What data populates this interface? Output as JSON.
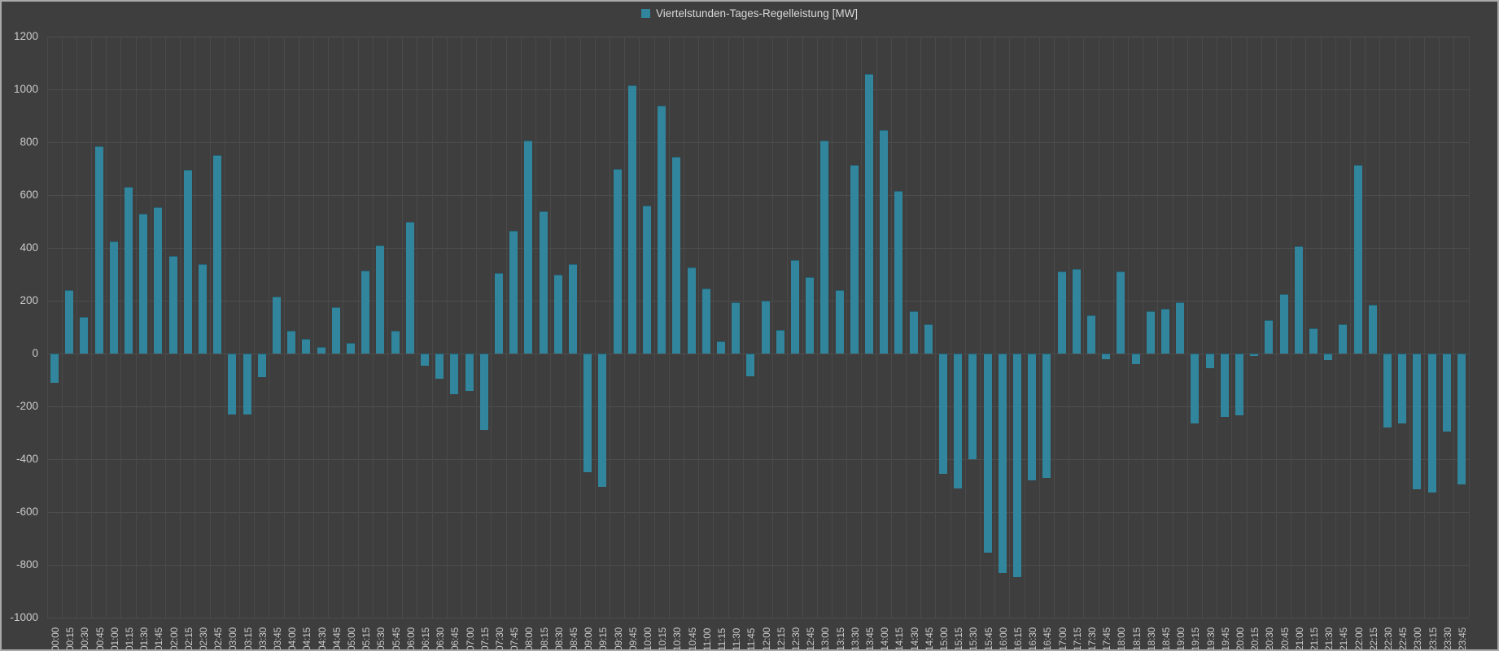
{
  "window": {
    "background_color": "#3e3e3e",
    "border_color": "#a9a9a9",
    "gridline_color": "#4e4e4e",
    "text_color": "#c9c9c9"
  },
  "legend": {
    "marker_icon": "square-icon",
    "marker_color": "#31859c",
    "label": "Viertelstunden-Tages-Regelleistung [MW]"
  },
  "chart_data": {
    "type": "bar",
    "title": "Viertelstunden-Tages-Regelleistung [MW]",
    "legend_position": "top-center",
    "grid": true,
    "xlabel": "",
    "ylabel": "",
    "ylim": [
      -1000,
      1200
    ],
    "ytick_step": 200,
    "ytick_labels": [
      "1200",
      "1000",
      "800",
      "600",
      "400",
      "200",
      "0",
      "-200",
      "-400",
      "-600",
      "-800",
      "-1000"
    ],
    "x_label_rotation": -90,
    "categories": [
      "00:00",
      "00:15",
      "00:30",
      "00:45",
      "01:00",
      "01:15",
      "01:30",
      "01:45",
      "02:00",
      "02:15",
      "02:30",
      "02:45",
      "03:00",
      "03:15",
      "03:30",
      "03:45",
      "04:00",
      "04:15",
      "04:30",
      "04:45",
      "05:00",
      "05:15",
      "05:30",
      "05:45",
      "06:00",
      "06:15",
      "06:30",
      "06:45",
      "07:00",
      "07:15",
      "07:30",
      "07:45",
      "08:00",
      "08:15",
      "08:30",
      "08:45",
      "09:00",
      "09:15",
      "09:30",
      "09:45",
      "10:00",
      "10:15",
      "10:30",
      "10:45",
      "11:00",
      "11:15",
      "11:30",
      "11:45",
      "12:00",
      "12:15",
      "12:30",
      "12:45",
      "13:00",
      "13:15",
      "13:30",
      "13:45",
      "14:00",
      "14:15",
      "14:30",
      "14:45",
      "15:00",
      "15:15",
      "15:30",
      "15:45",
      "16:00",
      "16:15",
      "16:30",
      "16:45",
      "17:00",
      "17:15",
      "17:30",
      "17:45",
      "18:00",
      "18:15",
      "18:30",
      "18:45",
      "19:00",
      "19:15",
      "19:30",
      "19:45",
      "20:00",
      "20:15",
      "20:30",
      "20:45",
      "21:00",
      "21:15",
      "21:30",
      "21:45",
      "22:00",
      "22:15",
      "22:30",
      "22:45",
      "23:00",
      "23:15",
      "23:30",
      "23:45"
    ],
    "series": [
      {
        "name": "Viertelstunden-Tages-Regelleistung [MW]",
        "color": "#31859c",
        "values": [
          -110,
          240,
          140,
          785,
          425,
          630,
          530,
          555,
          370,
          695,
          340,
          750,
          -230,
          -230,
          -90,
          215,
          85,
          55,
          25,
          175,
          40,
          315,
          410,
          85,
          500,
          -45,
          -95,
          -155,
          -140,
          -290,
          305,
          465,
          805,
          540,
          300,
          340,
          -450,
          -505,
          700,
          1015,
          560,
          940,
          745,
          325,
          245,
          45,
          195,
          -85,
          200,
          90,
          355,
          290,
          805,
          240,
          715,
          1060,
          845,
          615,
          160,
          110,
          -455,
          -510,
          -400,
          -755,
          -830,
          -845,
          -480,
          -470,
          310,
          320,
          145,
          -20,
          310,
          -40,
          160,
          170,
          195,
          -265,
          -55,
          -240,
          -235,
          -10,
          125,
          225,
          405,
          95,
          -25,
          110,
          715,
          185,
          -280,
          -265,
          -515,
          -525,
          -295,
          -495
        ]
      }
    ]
  }
}
